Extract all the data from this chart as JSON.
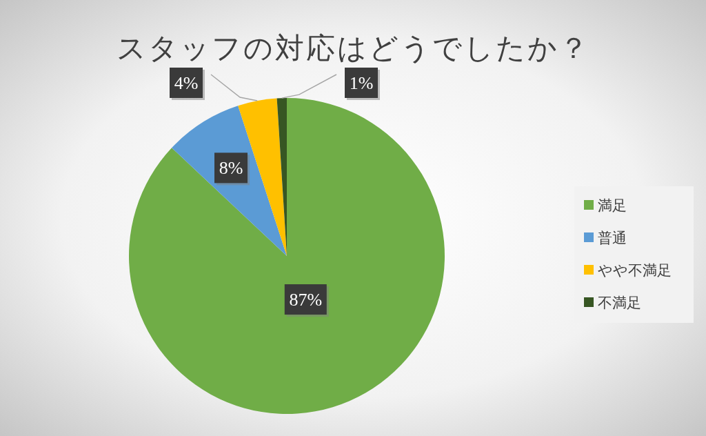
{
  "chart_data": {
    "type": "pie",
    "title": "スタッフの対応はどうでしたか？",
    "categories": [
      "満足",
      "普通",
      "やや不満足",
      "不満足"
    ],
    "values": [
      87,
      8,
      4,
      1
    ],
    "colors": [
      "#70ad47",
      "#5b9bd5",
      "#ffc000",
      "#375623"
    ],
    "value_labels": [
      "87%",
      "8%",
      "4%",
      "1%"
    ],
    "legend": "right"
  }
}
